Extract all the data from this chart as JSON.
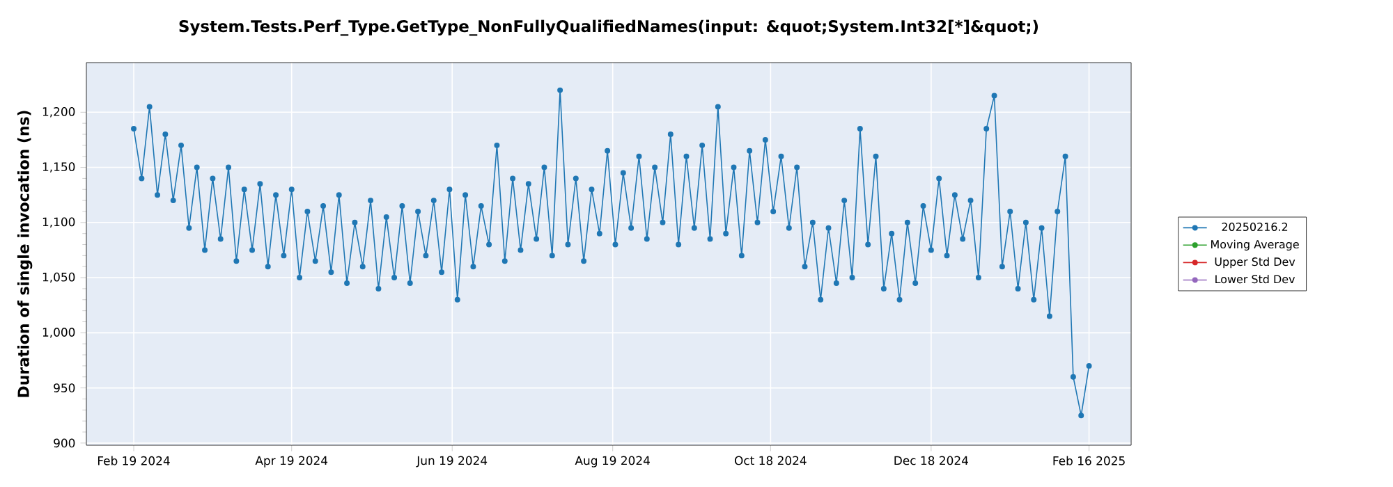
{
  "chart_data": {
    "type": "line",
    "title": "System.Tests.Perf_Type.GetType_NonFullyQualifiedNames(input: &quot;System.Int32[*]&quot;)",
    "ylabel": "Duration of single invocation (ns)",
    "x": [
      "2024-02-19",
      "2024-02-22",
      "2024-02-25",
      "2024-02-28",
      "2024-03-02",
      "2024-03-05",
      "2024-03-08",
      "2024-03-11",
      "2024-03-14",
      "2024-03-17",
      "2024-03-20",
      "2024-03-23",
      "2024-03-26",
      "2024-03-29",
      "2024-04-01",
      "2024-04-04",
      "2024-04-07",
      "2024-04-10",
      "2024-04-13",
      "2024-04-16",
      "2024-04-19",
      "2024-04-22",
      "2024-04-25",
      "2024-04-28",
      "2024-05-01",
      "2024-05-04",
      "2024-05-07",
      "2024-05-10",
      "2024-05-13",
      "2024-05-16",
      "2024-05-19",
      "2024-05-22",
      "2024-05-25",
      "2024-05-28",
      "2024-05-31",
      "2024-06-03",
      "2024-06-06",
      "2024-06-09",
      "2024-06-12",
      "2024-06-15",
      "2024-06-18",
      "2024-06-21",
      "2024-06-24",
      "2024-06-27",
      "2024-06-30",
      "2024-07-03",
      "2024-07-06",
      "2024-07-09",
      "2024-07-12",
      "2024-07-15",
      "2024-07-18",
      "2024-07-21",
      "2024-07-24",
      "2024-07-27",
      "2024-07-30",
      "2024-08-02",
      "2024-08-05",
      "2024-08-08",
      "2024-08-11",
      "2024-08-14",
      "2024-08-17",
      "2024-08-20",
      "2024-08-23",
      "2024-08-26",
      "2024-08-29",
      "2024-09-01",
      "2024-09-04",
      "2024-09-07",
      "2024-09-10",
      "2024-09-13",
      "2024-09-16",
      "2024-09-19",
      "2024-09-22",
      "2024-09-25",
      "2024-09-28",
      "2024-10-01",
      "2024-10-04",
      "2024-10-07",
      "2024-10-10",
      "2024-10-13",
      "2024-10-16",
      "2024-10-19",
      "2024-10-22",
      "2024-10-25",
      "2024-10-28",
      "2024-10-31",
      "2024-11-03",
      "2024-11-06",
      "2024-11-09",
      "2024-11-12",
      "2024-11-15",
      "2024-11-18",
      "2024-11-21",
      "2024-11-24",
      "2024-11-27",
      "2024-11-30",
      "2024-12-03",
      "2024-12-06",
      "2024-12-09",
      "2024-12-12",
      "2024-12-15",
      "2024-12-18",
      "2024-12-21",
      "2024-12-24",
      "2024-12-27",
      "2024-12-30",
      "2025-01-02",
      "2025-01-05",
      "2025-01-08",
      "2025-01-11",
      "2025-01-14",
      "2025-01-17",
      "2025-01-20",
      "2025-01-23",
      "2025-01-26",
      "2025-01-29",
      "2025-02-01",
      "2025-02-04",
      "2025-02-07",
      "2025-02-10",
      "2025-02-13",
      "2025-02-16"
    ],
    "series": [
      {
        "name": "20250216.2",
        "color": "#1f77b4",
        "values": [
          1185,
          1140,
          1205,
          1125,
          1180,
          1120,
          1170,
          1095,
          1150,
          1075,
          1140,
          1085,
          1150,
          1065,
          1130,
          1075,
          1135,
          1060,
          1125,
          1070,
          1130,
          1050,
          1110,
          1065,
          1115,
          1055,
          1125,
          1045,
          1100,
          1060,
          1120,
          1040,
          1105,
          1050,
          1115,
          1045,
          1110,
          1070,
          1120,
          1055,
          1130,
          1030,
          1125,
          1060,
          1115,
          1080,
          1170,
          1065,
          1140,
          1075,
          1135,
          1085,
          1150,
          1070,
          1220,
          1080,
          1140,
          1065,
          1130,
          1090,
          1165,
          1080,
          1145,
          1095,
          1160,
          1085,
          1150,
          1100,
          1180,
          1080,
          1160,
          1095,
          1170,
          1085,
          1205,
          1090,
          1150,
          1070,
          1165,
          1100,
          1175,
          1110,
          1160,
          1095,
          1150,
          1060,
          1100,
          1030,
          1095,
          1045,
          1120,
          1050,
          1185,
          1080,
          1160,
          1040,
          1090,
          1030,
          1100,
          1045,
          1115,
          1075,
          1140,
          1070,
          1125,
          1085,
          1120,
          1050,
          1185,
          1215,
          1060,
          1110,
          1040,
          1100,
          1030,
          1095,
          1015,
          1110,
          1160,
          960,
          925,
          970
        ]
      },
      {
        "name": "Moving Average",
        "color": "#2ca02c",
        "values": [
          null,
          null,
          null,
          null,
          null,
          null,
          null,
          null,
          null,
          null,
          null,
          null,
          null,
          null,
          null,
          null,
          null,
          null,
          null,
          null,
          null,
          null,
          null,
          null,
          null,
          null,
          null,
          null,
          null,
          null,
          null,
          null,
          null,
          null,
          null,
          null,
          null,
          null,
          null,
          null,
          null,
          null,
          null,
          null,
          null,
          null,
          null,
          null,
          null,
          null,
          null,
          null,
          null,
          null,
          null,
          null,
          null,
          null,
          null,
          null,
          null,
          null,
          null,
          null,
          null,
          null,
          null,
          null,
          null,
          null,
          null,
          null,
          null,
          null,
          null,
          null,
          null,
          null,
          null,
          null,
          null,
          null,
          null,
          null,
          null,
          null,
          null,
          null,
          null,
          null,
          null,
          null,
          null,
          null,
          null,
          null,
          null,
          null,
          null,
          null,
          null,
          null,
          null,
          null,
          null,
          null,
          null,
          null,
          null,
          null,
          null,
          null,
          null,
          null,
          null,
          null,
          null,
          null,
          null,
          null,
          null,
          null
        ]
      },
      {
        "name": "Upper Std Dev",
        "color": "#d62728",
        "values": [
          null,
          null,
          null,
          null,
          null,
          null,
          null,
          null,
          null,
          null,
          null,
          null,
          null,
          null,
          null,
          null,
          null,
          null,
          null,
          null,
          null,
          null,
          null,
          null,
          null,
          null,
          null,
          null,
          null,
          null,
          null,
          null,
          null,
          null,
          null,
          null,
          null,
          null,
          null,
          null,
          null,
          null,
          null,
          null,
          null,
          null,
          null,
          null,
          null,
          null,
          null,
          null,
          null,
          null,
          null,
          null,
          null,
          null,
          null,
          null,
          null,
          null,
          null,
          null,
          null,
          null,
          null,
          null,
          null,
          null,
          null,
          null,
          null,
          null,
          null,
          null,
          null,
          null,
          null,
          null,
          null,
          null,
          null,
          null,
          null,
          null,
          null,
          null,
          null,
          null,
          null,
          null,
          null,
          null,
          null,
          null,
          null,
          null,
          null,
          null,
          null,
          null,
          null,
          null,
          null,
          null,
          null,
          null,
          null,
          null,
          null,
          null,
          null,
          null,
          null,
          null,
          null,
          null,
          null,
          null,
          null,
          null
        ]
      },
      {
        "name": "Lower Std Dev",
        "color": "#9467bd",
        "values": [
          null,
          null,
          null,
          null,
          null,
          null,
          null,
          null,
          null,
          null,
          null,
          null,
          null,
          null,
          null,
          null,
          null,
          null,
          null,
          null,
          null,
          null,
          null,
          null,
          null,
          null,
          null,
          null,
          null,
          null,
          null,
          null,
          null,
          null,
          null,
          null,
          null,
          null,
          null,
          null,
          null,
          null,
          null,
          null,
          null,
          null,
          null,
          null,
          null,
          null,
          null,
          null,
          null,
          null,
          null,
          null,
          null,
          null,
          null,
          null,
          null,
          null,
          null,
          null,
          null,
          null,
          null,
          null,
          null,
          null,
          null,
          null,
          null,
          null,
          null,
          null,
          null,
          null,
          null,
          null,
          null,
          null,
          null,
          null,
          null,
          null,
          null,
          null,
          null,
          null,
          null,
          null,
          null,
          null,
          null,
          null,
          null,
          null,
          null,
          null,
          null,
          null,
          null,
          null,
          null,
          null,
          null,
          null,
          null,
          null,
          null,
          null,
          null,
          null,
          null,
          null,
          null,
          null,
          null,
          null,
          null,
          null
        ]
      }
    ],
    "xlim": [
      "2024-02-01",
      "2025-03-04"
    ],
    "ylim": [
      898,
      1245
    ],
    "xticks": [
      {
        "value": "2024-02-19",
        "label": "Feb 19 2024"
      },
      {
        "value": "2024-04-19",
        "label": "Apr 19 2024"
      },
      {
        "value": "2024-06-19",
        "label": "Jun 19 2024"
      },
      {
        "value": "2024-08-19",
        "label": "Aug 19 2024"
      },
      {
        "value": "2024-10-18",
        "label": "Oct 18 2024"
      },
      {
        "value": "2024-12-18",
        "label": "Dec 18 2024"
      },
      {
        "value": "2025-02-16",
        "label": "Feb 16 2025"
      }
    ],
    "yticks": [
      900,
      950,
      {
        "value": 1000,
        "label": "1,000"
      },
      {
        "value": 1050,
        "label": "1,050"
      },
      {
        "value": 1100,
        "label": "1,100"
      },
      {
        "value": 1150,
        "label": "1,150"
      },
      {
        "value": 1200,
        "label": "1,200"
      }
    ],
    "grid": true,
    "legend": "right",
    "marker": "circle",
    "line_style": "solid"
  }
}
